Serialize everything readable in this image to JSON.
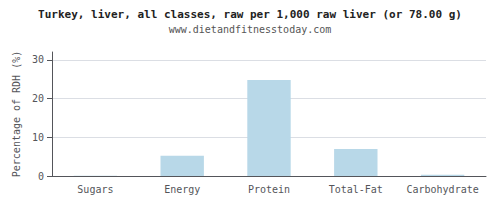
{
  "chart_data": {
    "type": "bar",
    "title": "Turkey, liver, all classes, raw per 1,000 raw liver (or 78.00 g)",
    "subtitle": "www.dietandfitnesstoday.com",
    "ylabel": "Percentage of RDH (%)",
    "categories": [
      "Sugars",
      "Energy",
      "Protein",
      "Total-Fat",
      "Carbohydrate"
    ],
    "values": [
      0.05,
      5.2,
      24.8,
      7.0,
      0.3
    ],
    "color": "#b8d8e8",
    "ylim": [
      0,
      32
    ],
    "yticks": [
      0,
      10,
      20,
      30
    ],
    "grid": true
  }
}
